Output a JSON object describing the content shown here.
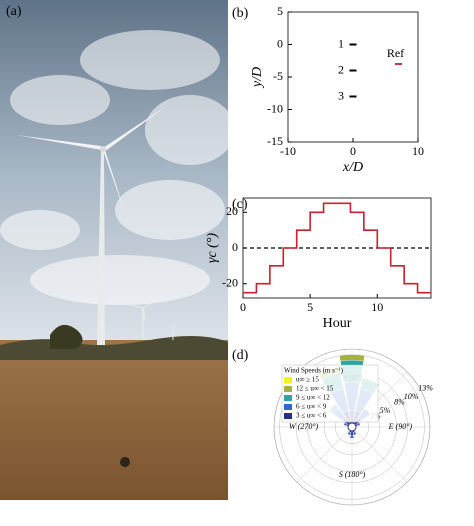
{
  "photo": {
    "label": "(a)"
  },
  "chart_data": [
    {
      "type": "scatter",
      "panel_label": "(b)",
      "xlabel": "x/D",
      "ylabel": "y/D",
      "xlim": [
        -10,
        10
      ],
      "xticks": [
        -10,
        0,
        10
      ],
      "ylim": [
        -15,
        5
      ],
      "yticks": [
        5,
        0,
        -5,
        -10,
        -15
      ],
      "series": [
        {
          "color": "#000000",
          "x": [
            0,
            0,
            0
          ],
          "y": [
            0,
            -4,
            -8
          ],
          "labels": [
            "1",
            "2",
            "3"
          ]
        },
        {
          "color": "#c8304e",
          "x": [
            7
          ],
          "y": [
            -3
          ],
          "labels": [
            "Ref"
          ]
        }
      ]
    },
    {
      "type": "line",
      "panel_label": "(c)",
      "xlabel": "Hour",
      "ylabel": "γc (°)",
      "drawstyle": "steps-post",
      "color": "#c8202e",
      "xlim": [
        0,
        14
      ],
      "xticks": [
        0,
        5,
        10
      ],
      "ylim": [
        -28,
        28
      ],
      "yticks": [
        20,
        0,
        -20
      ],
      "hlines": [
        0
      ],
      "x": [
        0,
        1,
        2,
        3,
        4,
        5,
        6,
        7,
        8,
        9,
        10,
        11,
        12,
        13,
        14
      ],
      "values": [
        -25,
        -20,
        -10,
        0,
        10,
        20,
        25,
        25,
        20,
        10,
        0,
        -10,
        -20,
        -25,
        -25
      ]
    },
    {
      "type": "windrose",
      "panel_label": "(d)",
      "legend_title": "Wind Speeds (m s⁻¹)",
      "rlim": [
        0,
        14
      ],
      "rticks": [
        {
          "value": 3,
          "label": "3%"
        },
        {
          "value": 5,
          "label": "5%"
        },
        {
          "value": 8,
          "label": "8%"
        },
        {
          "value": 10,
          "label": "10%"
        },
        {
          "value": 13,
          "label": "13%"
        }
      ],
      "direction_labels": [
        {
          "value": 0,
          "label": "N (0°)"
        },
        {
          "value": 90,
          "label": "E (90°)"
        },
        {
          "value": 180,
          "label": "S (180°)"
        },
        {
          "value": 270,
          "label": "W (270°)"
        }
      ],
      "directions": [
        0,
        22.5,
        45,
        67.5,
        90,
        112.5,
        135,
        157.5,
        180,
        202.5,
        225,
        247.5,
        270,
        292.5,
        315,
        337.5
      ],
      "series": [
        {
          "name": "3 ≤ u∞ < 6",
          "color": "#2b2a8c",
          "values": [
            3,
            3,
            2,
            1,
            0.5,
            0.5,
            0.5,
            1,
            1.5,
            1,
            0.5,
            0.5,
            0.5,
            1,
            2,
            3
          ]
        },
        {
          "name": "6 ≤ u∞ < 9",
          "color": "#3a63c9",
          "values": [
            5,
            4,
            2,
            0.5,
            0,
            0,
            0,
            0.5,
            0.5,
            0.5,
            0,
            0,
            0,
            0.5,
            2,
            4
          ]
        },
        {
          "name": "9 ≤ u∞ < 12",
          "color": "#2aa6a0",
          "values": [
            4,
            2,
            0,
            0,
            0,
            0,
            0,
            0,
            0,
            0,
            0,
            0,
            0,
            0,
            1,
            3
          ]
        },
        {
          "name": "12 ≤ u∞ < 15",
          "color": "#a4b23a",
          "values": [
            1,
            0,
            0,
            0,
            0,
            0,
            0,
            0,
            0,
            0,
            0,
            0,
            0,
            0,
            0,
            1
          ]
        },
        {
          "name": "u∞ ≥ 15",
          "color": "#f4f01e",
          "values": [
            0,
            0,
            0,
            0,
            0,
            0,
            0,
            0,
            0,
            0,
            0,
            0,
            0,
            0,
            0,
            0
          ]
        }
      ]
    }
  ]
}
